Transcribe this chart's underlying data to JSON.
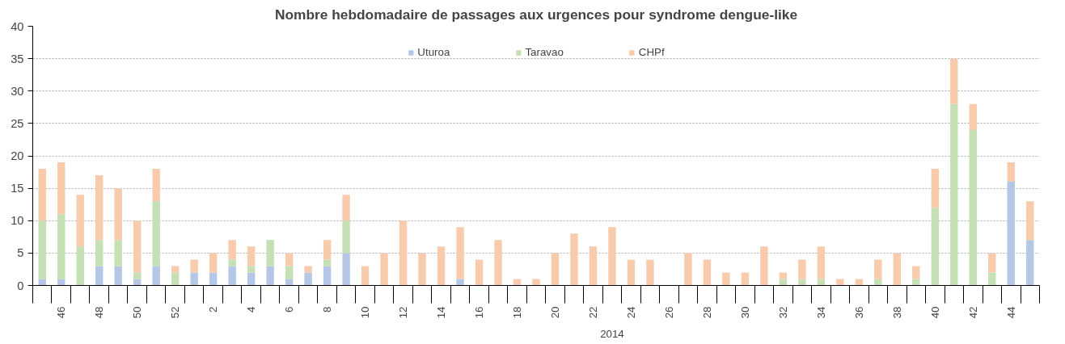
{
  "chart_data": {
    "type": "bar",
    "stacked": true,
    "title": "Nombre hebdomadaire de passages aux urgences pour syndrome dengue-like",
    "categories": [
      null,
      "46",
      null,
      "48",
      null,
      "50",
      null,
      "52",
      null,
      "2",
      null,
      "4",
      null,
      "6",
      null,
      "8",
      null,
      "10",
      null,
      "12",
      null,
      "14",
      null,
      "16",
      null,
      "18",
      null,
      "20",
      null,
      "22",
      null,
      "24",
      null,
      "26",
      null,
      "28",
      null,
      "30",
      null,
      "32",
      null,
      "34",
      null,
      "36",
      null,
      "38",
      null,
      "40",
      null,
      "42",
      null,
      "44",
      null
    ],
    "series": [
      {
        "name": "Uturoa",
        "color": "#b4c7e7",
        "values": [
          1,
          1,
          0,
          3,
          3,
          1,
          3,
          0,
          2,
          2,
          3,
          2,
          3,
          1,
          2,
          3,
          5,
          0,
          0,
          0,
          0,
          0,
          1,
          0,
          0,
          0,
          0,
          0,
          0,
          0,
          0,
          0,
          0,
          0,
          0,
          0,
          0,
          0,
          0,
          0,
          0,
          0,
          0,
          0,
          0,
          0,
          0,
          0,
          0,
          0,
          0,
          16,
          7
        ]
      },
      {
        "name": "Taravao",
        "color": "#c5e0b4",
        "values": [
          9,
          10,
          6,
          4,
          4,
          1,
          10,
          2,
          0,
          0,
          1,
          1,
          4,
          2,
          0,
          1,
          5,
          0,
          0,
          0,
          0,
          0,
          0,
          0,
          0,
          0,
          0,
          0,
          0,
          0,
          0,
          0,
          0,
          0,
          0,
          0,
          0,
          0,
          0,
          1,
          1,
          1,
          0,
          0,
          1,
          0,
          1,
          12,
          28,
          24,
          2,
          0,
          0
        ]
      },
      {
        "name": "CHPf",
        "color": "#f8cbad",
        "values": [
          8,
          8,
          8,
          10,
          8,
          8,
          5,
          1,
          2,
          3,
          3,
          3,
          0,
          2,
          1,
          3,
          4,
          3,
          5,
          10,
          5,
          6,
          8,
          4,
          7,
          1,
          1,
          5,
          8,
          6,
          9,
          4,
          4,
          0,
          5,
          4,
          2,
          2,
          6,
          1,
          3,
          5,
          1,
          1,
          3,
          5,
          2,
          6,
          7,
          4,
          3,
          3,
          6
        ]
      }
    ],
    "ylim": [
      0,
      40
    ],
    "yticks": [
      0,
      5,
      10,
      15,
      20,
      25,
      30,
      35,
      40
    ],
    "grid": "y",
    "legend": "top",
    "annotations": [
      "2014"
    ]
  }
}
